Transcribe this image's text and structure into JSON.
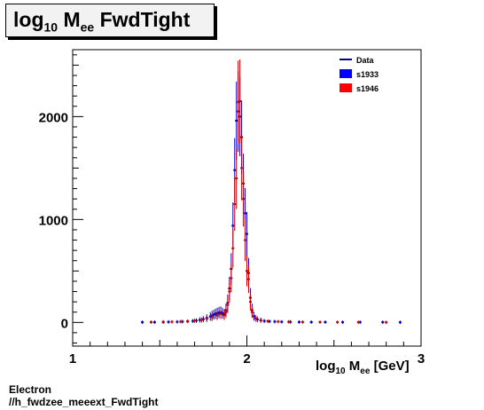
{
  "chart_data": {
    "type": "scatter",
    "title": {
      "main": "log",
      "sub": "10",
      "rest": " M",
      "sub2": "ee",
      "tail": " FwdTight"
    },
    "xlabel": {
      "main": "log",
      "sub": "10",
      "rest": " M",
      "sub2": "ee",
      "tail": " [GeV]"
    },
    "ylabel": "",
    "xlim": [
      1,
      3
    ],
    "ylim": [
      -230,
      2650
    ],
    "xticks": [
      "1",
      "2",
      "3"
    ],
    "yticks": [
      "0",
      "1000",
      "2000"
    ],
    "legend": {
      "placement": "top-right",
      "entries": [
        {
          "label": "Data",
          "style": "line",
          "color": "#00008b"
        },
        {
          "label": "s1933",
          "style": "box",
          "color": "#0000ff"
        },
        {
          "label": "s1946",
          "style": "box",
          "color": "#ff0000"
        }
      ]
    },
    "series": [
      {
        "name": "s1933",
        "color": "#0000cc",
        "x": [
          1.4,
          1.47,
          1.52,
          1.55,
          1.6,
          1.63,
          1.66,
          1.69,
          1.71,
          1.73,
          1.75,
          1.77,
          1.79,
          1.8,
          1.81,
          1.82,
          1.83,
          1.84,
          1.85,
          1.86,
          1.87,
          1.88,
          1.89,
          1.9,
          1.91,
          1.92,
          1.93,
          1.94,
          1.95,
          1.96,
          1.97,
          1.98,
          1.99,
          2.0,
          2.01,
          2.02,
          2.03,
          2.04,
          2.06,
          2.08,
          2.1,
          2.13,
          2.16,
          2.2,
          2.25,
          2.3,
          2.37,
          2.45,
          2.55,
          2.65,
          2.78,
          2.88
        ],
        "y": [
          2,
          2,
          4,
          5,
          6,
          8,
          10,
          14,
          18,
          24,
          32,
          44,
          58,
          68,
          76,
          84,
          90,
          96,
          100,
          90,
          80,
          120,
          190,
          330,
          520,
          940,
          1480,
          1960,
          2050,
          2000,
          1800,
          1350,
          1060,
          860,
          480,
          240,
          120,
          60,
          30,
          20,
          14,
          10,
          8,
          6,
          5,
          4,
          3,
          3,
          2,
          2,
          2,
          1
        ]
      },
      {
        "name": "s1946",
        "color": "#cc0000",
        "x": [
          1.45,
          1.52,
          1.57,
          1.62,
          1.66,
          1.7,
          1.74,
          1.77,
          1.8,
          1.83,
          1.85,
          1.87,
          1.88,
          1.89,
          1.9,
          1.91,
          1.92,
          1.93,
          1.94,
          1.95,
          1.96,
          1.97,
          1.98,
          1.99,
          2.0,
          2.01,
          2.02,
          2.03,
          2.05,
          2.08,
          2.12,
          2.18,
          2.24,
          2.32,
          2.42,
          2.52,
          2.64,
          2.8
        ],
        "y": [
          3,
          4,
          6,
          8,
          12,
          16,
          24,
          36,
          52,
          68,
          82,
          70,
          100,
          170,
          300,
          430,
          720,
          1150,
          1400,
          2140,
          2150,
          1500,
          1200,
          800,
          500,
          420,
          200,
          100,
          40,
          22,
          12,
          8,
          6,
          4,
          3,
          2,
          2,
          1
        ]
      }
    ]
  },
  "footer": {
    "line1": "Electron",
    "line2": "//h_fwdzee_meeext_FwdTight"
  }
}
